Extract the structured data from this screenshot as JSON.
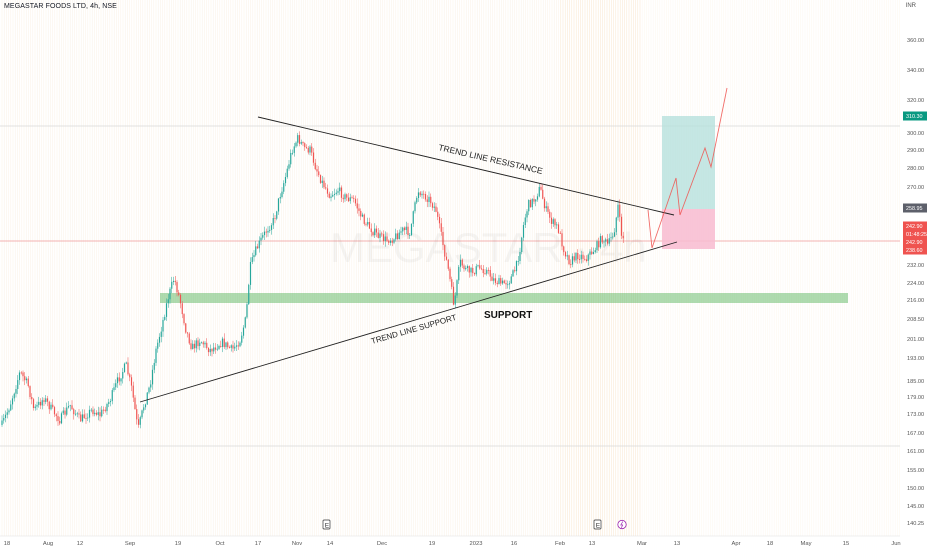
{
  "header": {
    "symbol_line": "MEGASTAR FOODS LTD, 4h, NSE",
    "currency": "INR"
  },
  "watermark": "MEGASTAR · 4h",
  "colors": {
    "up": "#26a69a",
    "down": "#ef5350",
    "support_zone": "#4caf50",
    "target_zone": "#b2dfdb",
    "stop_zone": "#f8bbd0",
    "price_badge": "#ef5350",
    "target_badge": "#089981"
  },
  "chart_data": {
    "type": "candlestick",
    "y_ticks": [
      "360.00",
      "340.00",
      "320.00",
      "300.00",
      "290.00",
      "280.00",
      "270.00",
      "250.00",
      "232.00",
      "224.00",
      "216.00",
      "208.50",
      "201.00",
      "193.00",
      "185.00",
      "179.00",
      "173.00",
      "167.00",
      "161.00",
      "155.00",
      "150.00",
      "145.00",
      "140.25"
    ],
    "x_ticks": [
      {
        "label": "18"
      },
      {
        "label": "Aug"
      },
      {
        "label": "12"
      },
      {
        "label": "Sep"
      },
      {
        "label": "19"
      },
      {
        "label": "Oct"
      },
      {
        "label": "17"
      },
      {
        "label": "Nov"
      },
      {
        "label": "14"
      },
      {
        "label": "Dec"
      },
      {
        "label": "19"
      },
      {
        "label": "2023"
      },
      {
        "label": "16"
      },
      {
        "label": "Feb"
      },
      {
        "label": "13"
      },
      {
        "label": "Mar"
      },
      {
        "label": "13"
      },
      {
        "label": "Apr"
      },
      {
        "label": "18"
      },
      {
        "label": "May"
      },
      {
        "label": "15"
      },
      {
        "label": "Jun"
      }
    ],
    "price_badges": [
      {
        "label": "310.30",
        "kind": "target"
      },
      {
        "label": "258.95",
        "kind": "grey"
      },
      {
        "label": "242.90",
        "kind": "current"
      },
      {
        "label": "01:48:25",
        "kind": "current"
      },
      {
        "label": "242.90",
        "kind": "current"
      },
      {
        "label": "238.60",
        "kind": "stop"
      }
    ],
    "annotations": [
      {
        "text": "TREND LINE RESISTANCE"
      },
      {
        "text": "TREND LINE SUPPORT"
      },
      {
        "text": "SUPPORT"
      }
    ],
    "event_markers": [
      "E",
      "E"
    ]
  }
}
